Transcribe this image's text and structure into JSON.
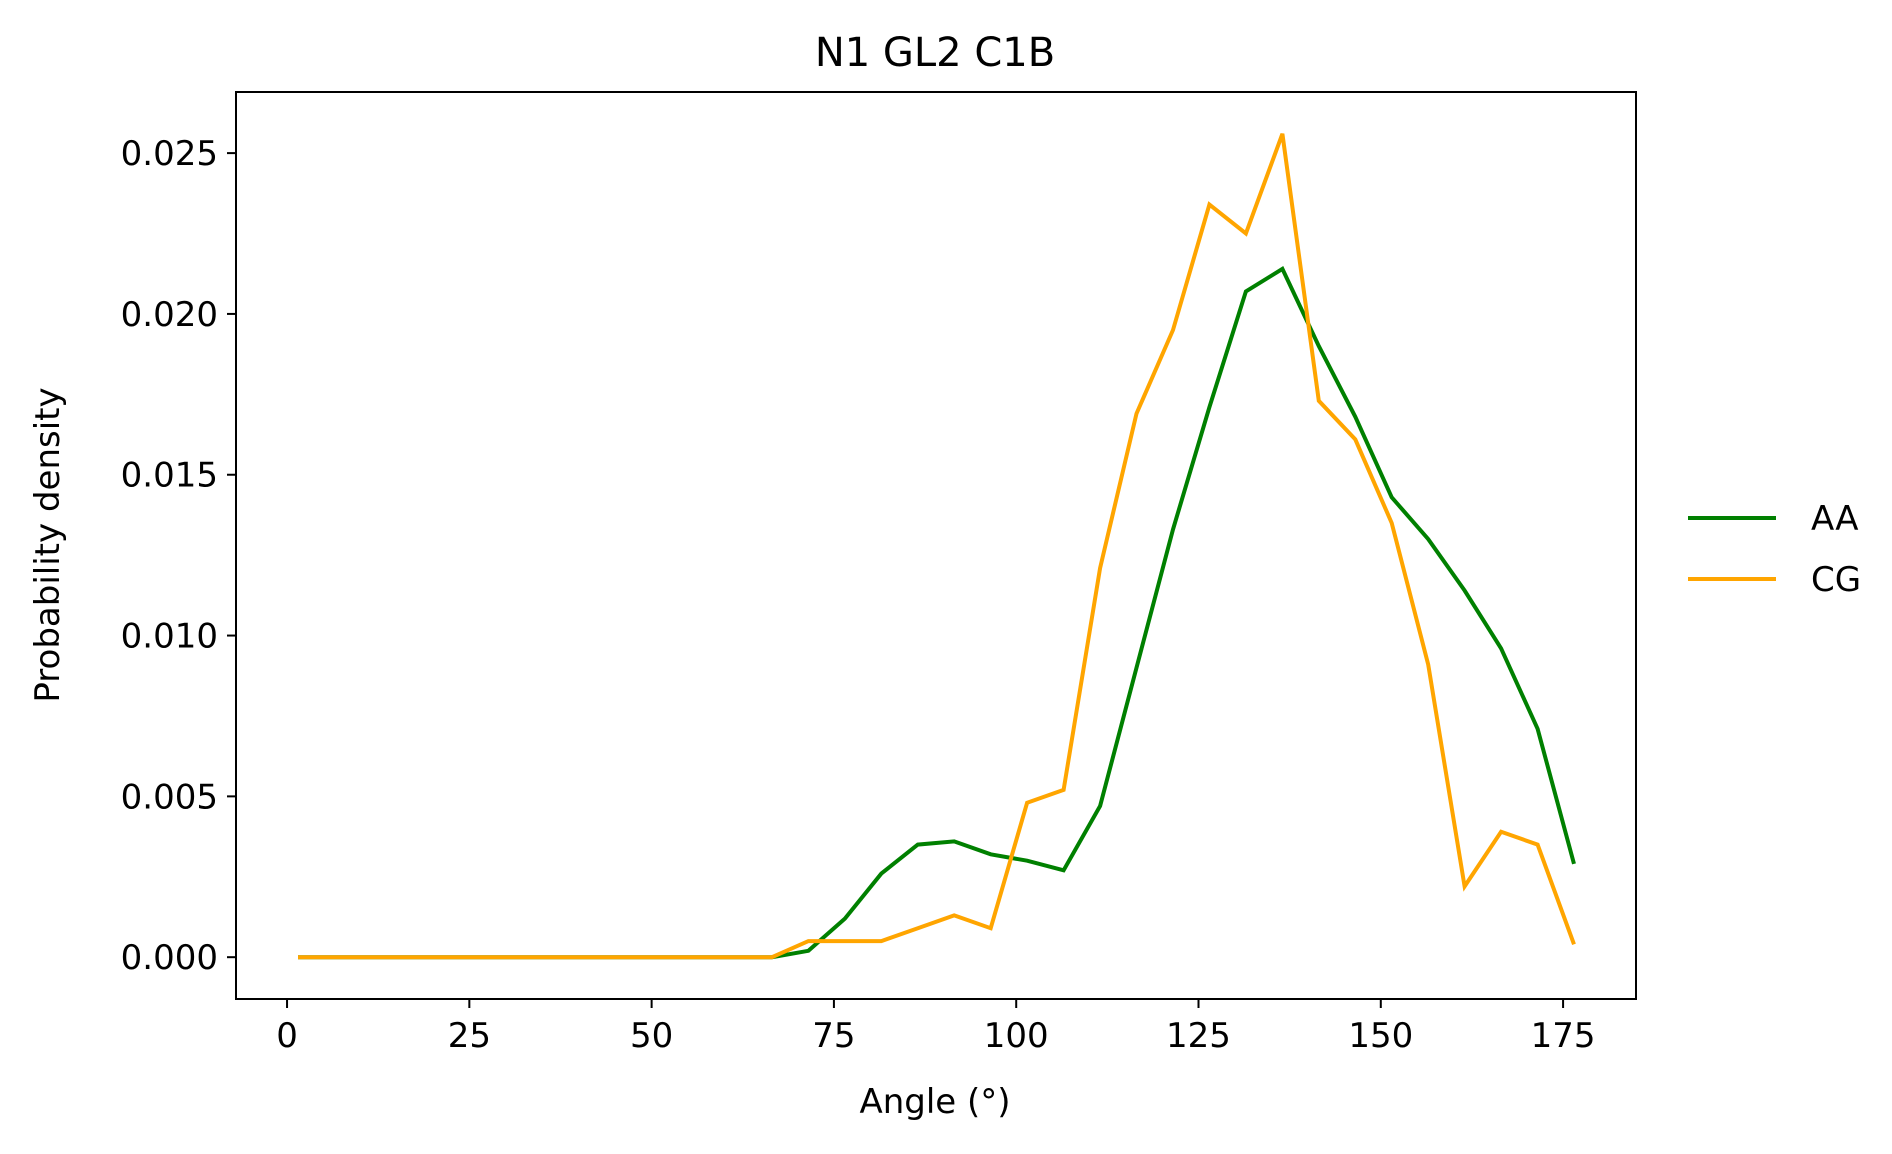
{
  "chart_data": {
    "type": "line",
    "title": "N1 GL2 C1B",
    "xlabel": "Angle (°)",
    "ylabel": "Probability density",
    "xlim": [
      -7,
      185
    ],
    "ylim": [
      -0.0013,
      0.0269
    ],
    "x_ticks": [
      0,
      25,
      50,
      75,
      100,
      125,
      150,
      175
    ],
    "x_tick_labels": [
      "0",
      "25",
      "50",
      "75",
      "100",
      "125",
      "150",
      "175"
    ],
    "y_ticks": [
      0,
      0.005,
      0.01,
      0.015,
      0.02,
      0.025
    ],
    "y_tick_labels": [
      "0.000",
      "0.005",
      "0.010",
      "0.015",
      "0.020",
      "0.025"
    ],
    "grid": false,
    "legend": "outside-right",
    "x": [
      1.5,
      6.5,
      11.5,
      16.5,
      21.5,
      26.5,
      31.5,
      36.5,
      41.5,
      46.5,
      51.5,
      56.5,
      61.5,
      66.5,
      71.5,
      76.5,
      81.5,
      86.5,
      91.5,
      96.5,
      101.5,
      106.5,
      111.5,
      116.5,
      121.5,
      126.5,
      131.5,
      136.5,
      141.5,
      146.5,
      151.5,
      156.5,
      161.5,
      166.5,
      171.5,
      176.5
    ],
    "series": [
      {
        "name": "AA",
        "color": "#008000",
        "values": [
          0,
          0,
          0,
          0,
          0,
          0,
          0,
          0,
          0,
          0,
          0,
          0,
          0,
          0,
          0.0002,
          0.0012,
          0.0026,
          0.0035,
          0.0036,
          0.0032,
          0.003,
          0.0027,
          0.0047,
          0.009,
          0.0133,
          0.0171,
          0.0207,
          0.0214,
          0.019,
          0.0168,
          0.0143,
          0.013,
          0.0114,
          0.0096,
          0.0071,
          0.0029
        ]
      },
      {
        "name": "CG",
        "color": "#FFA500",
        "values": [
          0,
          0,
          0,
          0,
          0,
          0,
          0,
          0,
          0,
          0,
          0,
          0,
          0,
          0,
          0.0005,
          0.0005,
          0.0005,
          0.0009,
          0.0013,
          0.0009,
          0.0048,
          0.0052,
          0.0121,
          0.0169,
          0.0195,
          0.0234,
          0.0225,
          0.0256,
          0.0173,
          0.0161,
          0.0135,
          0.0091,
          0.0022,
          0.0039,
          0.0035,
          0.0004
        ]
      }
    ]
  }
}
